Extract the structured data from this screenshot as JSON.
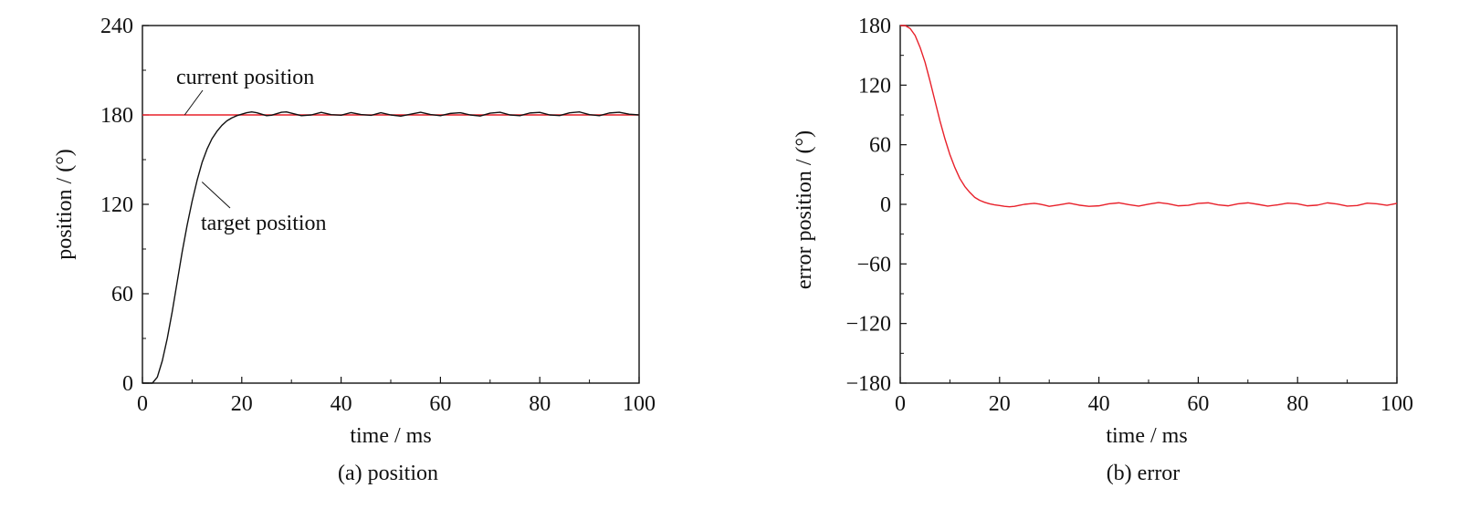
{
  "chart_data": [
    {
      "type": "line",
      "panel": "a",
      "caption": "(a) position",
      "xlabel": "time / ms",
      "ylabel": "position / (°)",
      "xlim": [
        0,
        100
      ],
      "ylim": [
        0,
        240
      ],
      "xticks": [
        0,
        20,
        40,
        60,
        80,
        100
      ],
      "yticks": [
        0,
        60,
        120,
        180,
        240
      ],
      "xtick_labels": [
        "0",
        "20",
        "40",
        "60",
        "80",
        "100"
      ],
      "ytick_labels": [
        "0",
        "60",
        "120",
        "180",
        "240"
      ],
      "grid": false,
      "series": [
        {
          "color": "#e8202a",
          "x": [
            0,
            100
          ],
          "y": [
            180,
            180
          ]
        },
        {
          "color": "#111111",
          "x": [
            0,
            1,
            2,
            3,
            4,
            5,
            6,
            7,
            8,
            9,
            10,
            11,
            12,
            13,
            14,
            15,
            16,
            17,
            18,
            19,
            20,
            21,
            22,
            23,
            24,
            25,
            26,
            27,
            28,
            29,
            30,
            32,
            34,
            36,
            38,
            40,
            42,
            44,
            46,
            48,
            50,
            52,
            54,
            56,
            58,
            60,
            62,
            64,
            66,
            68,
            70,
            72,
            74,
            76,
            78,
            80,
            82,
            84,
            86,
            88,
            90,
            92,
            94,
            96,
            98,
            100
          ],
          "y": [
            0,
            0,
            0,
            4,
            15,
            30,
            48,
            68,
            88,
            106,
            122,
            136,
            148,
            157,
            164,
            169,
            173,
            176,
            178,
            179.5,
            180.5,
            181.5,
            182,
            181.5,
            180.5,
            179.5,
            179.8,
            180.8,
            181.8,
            182,
            181.2,
            179.5,
            180,
            181.7,
            180.2,
            179.8,
            181.6,
            180.3,
            179.7,
            181.5,
            180,
            179.2,
            180.5,
            181.8,
            180.3,
            179.5,
            181,
            181.5,
            180,
            179.3,
            181.2,
            181.8,
            180,
            179.5,
            181.3,
            181.7,
            180,
            179.6,
            181.4,
            182,
            180.2,
            179.5,
            181.3,
            181.8,
            180.5,
            180
          ]
        }
      ],
      "annotations": [
        {
          "text": "current position",
          "x": 8.5,
          "y": 180
        },
        {
          "text": "target position",
          "x": 12,
          "y": 135
        }
      ]
    },
    {
      "type": "line",
      "panel": "b",
      "caption": "(b) error",
      "xlabel": "time / ms",
      "ylabel": "error position / (°)",
      "xlim": [
        0,
        100
      ],
      "ylim": [
        -180,
        180
      ],
      "xticks": [
        0,
        20,
        40,
        60,
        80,
        100
      ],
      "yticks": [
        -180,
        -120,
        -60,
        0,
        60,
        120,
        180
      ],
      "xtick_labels": [
        "0",
        "20",
        "40",
        "60",
        "80",
        "100"
      ],
      "ytick_labels": [
        "−180",
        "−120",
        "−60",
        "0",
        "60",
        "120",
        "180"
      ],
      "grid": false,
      "series": [
        {
          "color": "#e8202a",
          "x": [
            0,
            1,
            2,
            3,
            4,
            5,
            6,
            7,
            8,
            9,
            10,
            11,
            12,
            13,
            14,
            15,
            16,
            17,
            18,
            19,
            20,
            21,
            22,
            23,
            24,
            25,
            26,
            27,
            28,
            29,
            30,
            32,
            34,
            36,
            38,
            40,
            42,
            44,
            46,
            48,
            50,
            52,
            54,
            56,
            58,
            60,
            62,
            64,
            66,
            68,
            70,
            72,
            74,
            76,
            78,
            80,
            82,
            84,
            86,
            88,
            90,
            92,
            94,
            96,
            98,
            100
          ],
          "y": [
            180,
            180,
            177,
            170,
            158,
            143,
            124,
            104,
            84,
            66,
            50,
            37,
            26,
            18,
            12,
            7,
            4,
            2,
            0.5,
            -0.5,
            -1.2,
            -2,
            -2.5,
            -2,
            -1,
            0,
            0.5,
            1,
            0.3,
            -0.8,
            -2,
            -0.5,
            1.2,
            -0.8,
            -2,
            -1.5,
            0.5,
            1.5,
            -0.3,
            -1.8,
            0.2,
            1.8,
            0.5,
            -1.5,
            -1,
            1,
            1.5,
            -0.5,
            -1.5,
            0.5,
            1.5,
            0,
            -1.8,
            -0.5,
            1.2,
            0.5,
            -1.5,
            -0.8,
            1.5,
            0.3,
            -1.8,
            -1.2,
            1.2,
            0.5,
            -1,
            1
          ]
        }
      ],
      "annotations": []
    }
  ]
}
